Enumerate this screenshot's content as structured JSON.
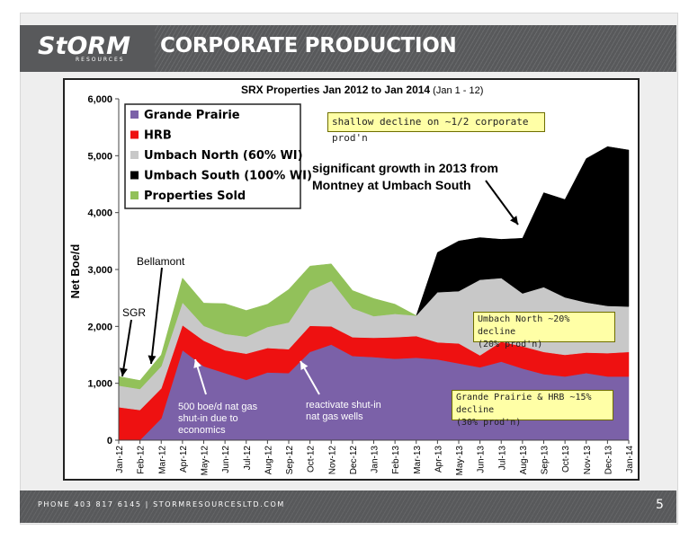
{
  "header": {
    "logo_text": "StORM",
    "logo_subtext": "RESOURCES",
    "title": "CORPORATE PRODUCTION"
  },
  "footer": {
    "contact": "PHONE 403 817 6145   |   STORMRESOURCESLTD.COM",
    "page_number": "5"
  },
  "colors": {
    "grande_prairie": "#7b61a8",
    "hrb": "#ee1111",
    "umbach_north": "#c8c8c8",
    "umbach_south": "#000000",
    "properties_sold": "#92c15a",
    "note_fill": "#ffffa6"
  },
  "annotations": {
    "shallow_decline": "shallow decline on ~1/2 corporate prod'n",
    "growth_line1": "significant growth in 2013 from",
    "growth_line2": "Montney at Umbach South",
    "bellamont": "Bellamont",
    "sgr": "SGR",
    "shutin_line1": "500 boe/d nat gas",
    "shutin_line2": "shut-in due to",
    "shutin_line3": "economics",
    "reactivate_line1": "reactivate shut-in",
    "reactivate_line2": "nat gas wells",
    "umbach_north_note_line1": "Umbach North ~20% decline",
    "umbach_north_note_line2": "(20% prod'n)",
    "gp_hrb_note_line1": "Grande Prairie & HRB ~15% decline",
    "gp_hrb_note_line2": "(30% prod'n)"
  },
  "chart_data": {
    "type": "area",
    "stacked": true,
    "title": "SRX Properties Jan 2012 to Jan 2014",
    "subtitle": "(Jan 1 - 12)",
    "ylabel": "Net Boe/d",
    "xlabel": "",
    "ylim": [
      0,
      6000
    ],
    "yticks": [
      "0",
      "1,000",
      "2,000",
      "3,000",
      "4,000",
      "5,000",
      "6,000"
    ],
    "legend_position": "top-left",
    "categories": [
      "Jan-12",
      "Feb-12",
      "Mar-12",
      "Apr-12",
      "May-12",
      "Jun-12",
      "Jul-12",
      "Aug-12",
      "Sep-12",
      "Oct-12",
      "Nov-12",
      "Dec-12",
      "Jan-13",
      "Feb-13",
      "Mar-13",
      "Apr-13",
      "May-13",
      "Jun-13",
      "Jul-13",
      "Aug-13",
      "Sep-13",
      "Oct-13",
      "Nov-13",
      "Dec-13",
      "Jan-14"
    ],
    "series": [
      {
        "name": "Grande Prairie",
        "key": "grande_prairie",
        "values": [
          0,
          0,
          380,
          1580,
          1300,
          1180,
          1060,
          1190,
          1180,
          1550,
          1680,
          1480,
          1460,
          1430,
          1450,
          1420,
          1350,
          1280,
          1380,
          1260,
          1160,
          1120,
          1180,
          1120,
          1120
        ]
      },
      {
        "name": "HRB",
        "key": "hrb",
        "values": [
          580,
          530,
          530,
          440,
          450,
          400,
          460,
          430,
          420,
          460,
          320,
          330,
          340,
          380,
          380,
          300,
          350,
          210,
          350,
          390,
          390,
          380,
          360,
          410,
          430
        ]
      },
      {
        "name": "Umbach  North (60% WI)",
        "key": "umbach_north",
        "values": [
          380,
          370,
          390,
          400,
          260,
          290,
          300,
          370,
          470,
          620,
          800,
          510,
          380,
          410,
          360,
          880,
          920,
          1330,
          1120,
          930,
          1140,
          1010,
          880,
          830,
          800
        ]
      },
      {
        "name": "Umbach  South (100% WI)",
        "key": "umbach_south",
        "values": [
          0,
          0,
          0,
          0,
          0,
          0,
          0,
          0,
          0,
          0,
          0,
          0,
          0,
          0,
          0,
          700,
          880,
          740,
          680,
          970,
          1660,
          1720,
          2530,
          2800,
          2750
        ]
      },
      {
        "name": "Properties Sold",
        "key": "properties_sold",
        "values": [
          160,
          150,
          200,
          430,
          400,
          530,
          460,
          400,
          580,
          430,
          300,
          310,
          310,
          170,
          0,
          0,
          0,
          0,
          0,
          0,
          0,
          0,
          0,
          0,
          0
        ]
      }
    ]
  }
}
